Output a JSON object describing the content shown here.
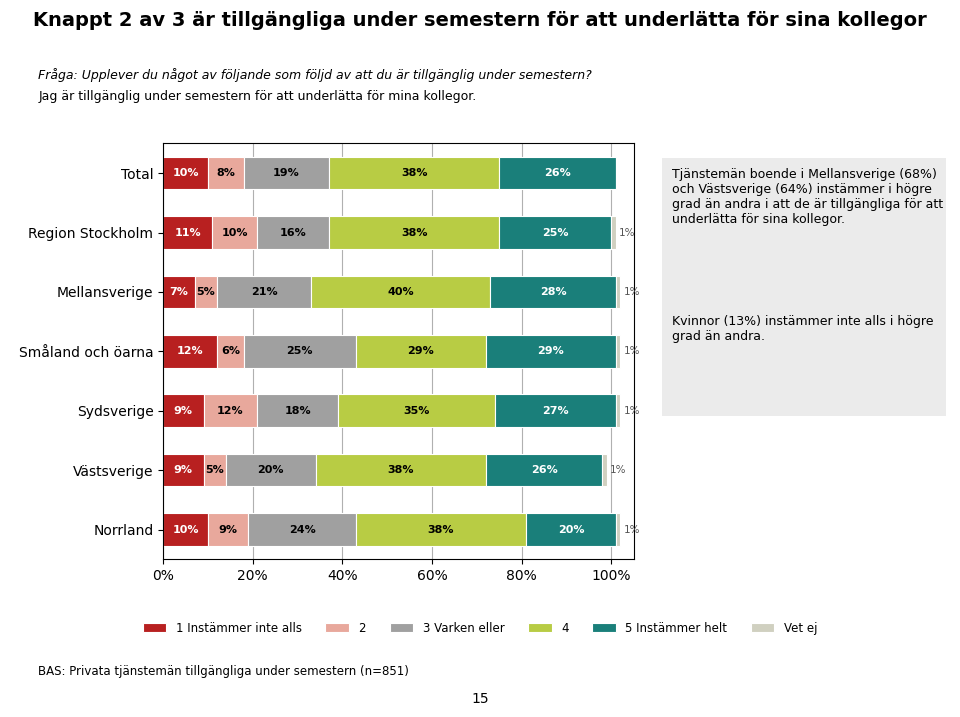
{
  "chart_data": {
    "type": "bar",
    "orientation": "horizontal",
    "stacked": true,
    "title": "Knappt 2 av 3 är tillgängliga under semestern för att underlätta för sina kollegor",
    "subtitle": "Fråga: Upplever du något av följande som följd av att du är tillgänglig under semestern?",
    "annotations": [
      "Jag är tillgänglig under semestern för att underlätta för mina kollegor.",
      "Tjänstemän boende i Mellansverige (68%) och Västsverige (64%) instämmer i högre grad än andra i att de är tillgängliga för att underlätta för sina kollegor.",
      "Kvinnor (13%) instämmer inte alls i högre grad än andra.",
      "BAS: Privata tjänstemän tillgängliga under semestern (n=851)",
      "15"
    ],
    "categories": [
      "Total",
      "Region Stockholm",
      "Mellansverige",
      "Småland och öarna",
      "Sydsverige",
      "Västsverige",
      "Norrland"
    ],
    "series": [
      {
        "name": "1 Instämmer inte alls",
        "color": "#b82020",
        "values": [
          10,
          11,
          7,
          12,
          9,
          9,
          10
        ],
        "value_labels": [
          "10%",
          "11%",
          "7%",
          "12%",
          "9%",
          "9%",
          "10%"
        ]
      },
      {
        "name": "2",
        "color": "#e8a89c",
        "values": [
          8,
          10,
          5,
          6,
          12,
          5,
          9
        ],
        "value_labels": [
          "8%",
          "10%",
          "5%",
          "6%",
          "12%",
          "5%",
          "9%"
        ]
      },
      {
        "name": "3 Varken eller",
        "color": "#a0a0a0",
        "values": [
          19,
          16,
          21,
          25,
          18,
          20,
          24
        ],
        "value_labels": [
          "19%",
          "16%",
          "21%",
          "25%",
          "18%",
          "20%",
          "24%"
        ]
      },
      {
        "name": "4",
        "color": "#b8cc44",
        "values": [
          38,
          38,
          40,
          29,
          35,
          38,
          38
        ],
        "value_labels": [
          "38%",
          "38%",
          "40%",
          "29%",
          "35%",
          "38%",
          "38%"
        ]
      },
      {
        "name": "5 Instämmer helt",
        "color": "#1a7f7a",
        "values": [
          26,
          25,
          28,
          29,
          27,
          26,
          20
        ],
        "value_labels": [
          "26%",
          "25%",
          "28%",
          "29%",
          "27%",
          "26%",
          "20%"
        ]
      },
      {
        "name": "Vet ej",
        "color": "#d0d0c0",
        "values": [
          0,
          1,
          1,
          1,
          1,
          1,
          1
        ],
        "value_labels": [
          null,
          "1%",
          "1%",
          "1%",
          "1%",
          "1%",
          "1%"
        ]
      }
    ],
    "xlim": [
      0,
      105
    ],
    "xticks": [
      {
        "value": 0,
        "label": "0%"
      },
      {
        "value": 20,
        "label": "20%"
      },
      {
        "value": 40,
        "label": "40%"
      },
      {
        "value": 60,
        "label": "60%"
      },
      {
        "value": 80,
        "label": "80%"
      },
      {
        "value": 100,
        "label": "100%"
      }
    ],
    "grid": true,
    "legend": "lower center",
    "data_labels": true
  }
}
